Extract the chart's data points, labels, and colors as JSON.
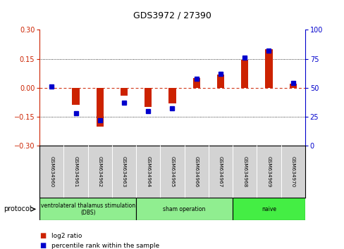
{
  "title": "GDS3972 / 27390",
  "samples": [
    "GSM634960",
    "GSM634961",
    "GSM634962",
    "GSM634963",
    "GSM634964",
    "GSM634965",
    "GSM634966",
    "GSM634967",
    "GSM634968",
    "GSM634969",
    "GSM634970"
  ],
  "log2_ratio": [
    0.0,
    -0.09,
    -0.2,
    -0.04,
    -0.1,
    -0.08,
    0.05,
    0.07,
    0.145,
    0.2,
    0.02
  ],
  "percentile_rank": [
    51,
    28,
    22,
    37,
    30,
    32,
    58,
    62,
    76,
    82,
    54
  ],
  "groups": [
    {
      "label": "ventrolateral thalamus stimulation\n(DBS)",
      "start": 0,
      "end": 3,
      "color": "#90ee90"
    },
    {
      "label": "sham operation",
      "start": 4,
      "end": 7,
      "color": "#90ee90"
    },
    {
      "label": "naive",
      "start": 8,
      "end": 10,
      "color": "#44ee44"
    }
  ],
  "ylim_left": [
    -0.3,
    0.3
  ],
  "ylim_right": [
    0,
    100
  ],
  "yticks_left": [
    -0.3,
    -0.15,
    0,
    0.15,
    0.3
  ],
  "yticks_right": [
    0,
    25,
    50,
    75,
    100
  ],
  "bar_color": "#cc2200",
  "square_color": "#0000cc",
  "dotted_line_y": [
    -0.15,
    0.15
  ],
  "bg_color": "#ffffff"
}
